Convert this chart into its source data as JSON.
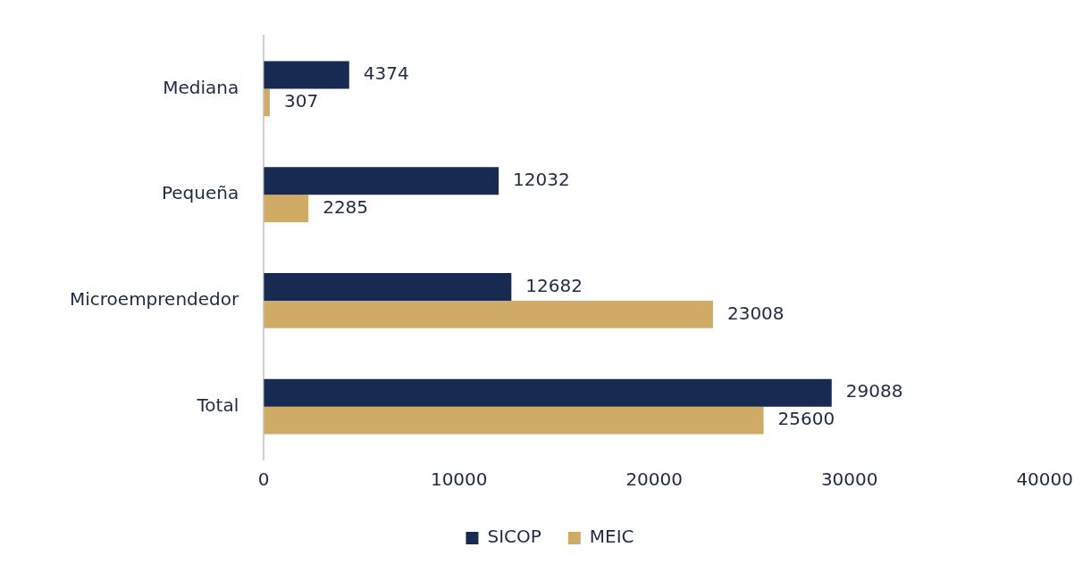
{
  "chart_data": {
    "type": "bar",
    "orientation": "horizontal",
    "categories": [
      "Mediana",
      "Pequeña",
      "Microemprendedor",
      "Total"
    ],
    "series": [
      {
        "name": "SICOP",
        "color": "#172a52",
        "values": [
          4374,
          12032,
          12682,
          29088
        ]
      },
      {
        "name": "MEIC",
        "color": "#cfab65",
        "values": [
          307,
          2285,
          23008,
          25600
        ]
      }
    ],
    "xlim": [
      0,
      40000
    ],
    "xticks": [
      0,
      10000,
      20000,
      30000,
      40000
    ],
    "data_labels": true,
    "grid": false,
    "legend": "bottom"
  }
}
